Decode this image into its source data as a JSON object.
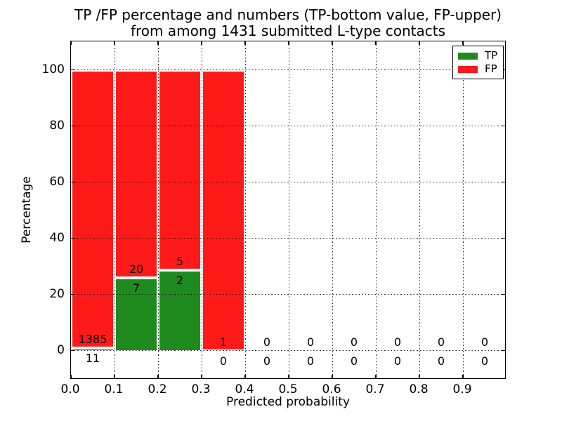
{
  "title": {
    "line1": "TP /FP percentage and numbers (TP-bottom value, FP-upper)",
    "line2": "from among 1431 submitted L-type contacts"
  },
  "axes": {
    "xlabel": "Predicted probability",
    "ylabel": "Percentage",
    "x_tick_labels": [
      "0.0",
      "0.1",
      "0.2",
      "0.3",
      "0.4",
      "0.5",
      "0.6",
      "0.7",
      "0.8",
      "0.9"
    ],
    "x_tick_values": [
      0,
      0.1,
      0.2,
      0.3,
      0.4,
      0.5,
      0.6,
      0.7,
      0.8,
      0.9
    ],
    "y_tick_labels": [
      "0",
      "20",
      "40",
      "60",
      "80",
      "100"
    ],
    "y_tick_values": [
      0,
      20,
      40,
      60,
      80,
      100
    ],
    "xlim": [
      0,
      1.0
    ],
    "ylim": [
      -10.4,
      110.2
    ],
    "grid": "dotted, drawn above bars"
  },
  "legend": {
    "position": "upper-right",
    "items": [
      {
        "label": "TP",
        "color": "#1f8b1f"
      },
      {
        "label": "FP",
        "color": "#ff1a1a"
      }
    ]
  },
  "colors": {
    "tp": "#1f8b1f",
    "fp": "#ff1a1a",
    "bar_edge": "#ffffff",
    "grid": "#000000",
    "text": "#000000",
    "background": "#ffffff"
  },
  "chart_data": {
    "type": "bar",
    "stacked": true,
    "title": "TP /FP percentage and numbers (TP-bottom value, FP-upper) from among 1431 submitted L-type contacts",
    "xlabel": "Predicted probability",
    "ylabel": "Percentage",
    "xlim": [
      0,
      1.0
    ],
    "ylim": [
      -10.4,
      110.2
    ],
    "bin_width": 0.1,
    "total_contacts": 1431,
    "categories": [
      "0.0-0.1",
      "0.1-0.2",
      "0.2-0.3",
      "0.3-0.4",
      "0.4-0.5",
      "0.5-0.6",
      "0.6-0.7",
      "0.7-0.8",
      "0.8-0.9",
      "0.9-1.0"
    ],
    "series": [
      {
        "name": "TP",
        "counts": [
          11,
          7,
          2,
          0,
          0,
          0,
          0,
          0,
          0,
          0
        ],
        "percent": [
          0.788,
          25.926,
          28.571,
          0,
          0,
          0,
          0,
          0,
          0,
          0
        ]
      },
      {
        "name": "FP",
        "counts": [
          1385,
          20,
          5,
          1,
          0,
          0,
          0,
          0,
          0,
          0
        ],
        "percent": [
          99.212,
          74.074,
          71.429,
          100,
          0,
          0,
          0,
          0,
          0,
          0
        ]
      }
    ],
    "bins": [
      {
        "range": "0.0-0.1",
        "tp_count": 11,
        "fp_count": 1385,
        "tp_percent": 0.788,
        "fp_percent": 99.212
      },
      {
        "range": "0.1-0.2",
        "tp_count": 7,
        "fp_count": 20,
        "tp_percent": 25.926,
        "fp_percent": 74.074
      },
      {
        "range": "0.2-0.3",
        "tp_count": 2,
        "fp_count": 5,
        "tp_percent": 28.571,
        "fp_percent": 71.429
      },
      {
        "range": "0.3-0.4",
        "tp_count": 0,
        "fp_count": 1,
        "tp_percent": 0,
        "fp_percent": 100
      },
      {
        "range": "0.4-0.5",
        "tp_count": 0,
        "fp_count": 0,
        "tp_percent": 0,
        "fp_percent": 0
      },
      {
        "range": "0.5-0.6",
        "tp_count": 0,
        "fp_count": 0,
        "tp_percent": 0,
        "fp_percent": 0
      },
      {
        "range": "0.6-0.7",
        "tp_count": 0,
        "fp_count": 0,
        "tp_percent": 0,
        "fp_percent": 0
      },
      {
        "range": "0.7-0.8",
        "tp_count": 0,
        "fp_count": 0,
        "tp_percent": 0,
        "fp_percent": 0
      },
      {
        "range": "0.8-0.9",
        "tp_count": 0,
        "fp_count": 0,
        "tp_percent": 0,
        "fp_percent": 0
      },
      {
        "range": "0.9-1.0",
        "tp_count": 0,
        "fp_count": 0,
        "tp_percent": 0,
        "fp_percent": 0
      }
    ]
  }
}
